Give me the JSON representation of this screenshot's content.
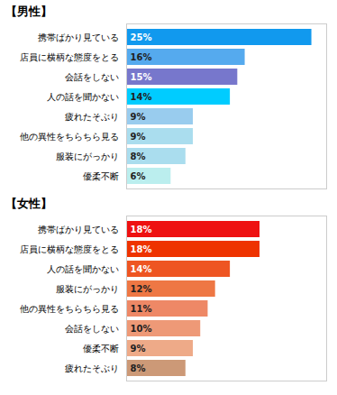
{
  "chart_data": [
    {
      "type": "bar",
      "orientation": "horizontal",
      "title": "【男性】",
      "categories": [
        "携帯ばかり見ている",
        "店員に横柄な態度をとる",
        "会話をしない",
        "人の話を聞かない",
        "疲れたそぶり",
        "他の異性をちらちら見る",
        "服装にがっかり",
        "優柔不断"
      ],
      "values": [
        25,
        16,
        15,
        14,
        9,
        9,
        8,
        6
      ],
      "value_labels": [
        "25%",
        "16%",
        "15%",
        "14%",
        "9%",
        "9%",
        "8%",
        "6%"
      ],
      "colors": [
        "#1199EE",
        "#55AAEE",
        "#7777CC",
        "#00CCFF",
        "#99CCEE",
        "#AADDEE",
        "#AADDEE",
        "#BBEEEE"
      ],
      "xlim": [
        0,
        27
      ],
      "data_labels": true,
      "tick_labels": "y",
      "grid": false
    },
    {
      "type": "bar",
      "orientation": "horizontal",
      "title": "【女性】",
      "categories": [
        "携帯ばかり見ている",
        "店員に横柄な態度をとる",
        "人の話を聞かない",
        "服装にがっかり",
        "他の異性をちらちら見る",
        "会話をしない",
        "優柔不断",
        "疲れたそぶり"
      ],
      "values": [
        18,
        18,
        14,
        12,
        11,
        10,
        9,
        8
      ],
      "value_labels": [
        "18%",
        "18%",
        "14%",
        "12%",
        "11%",
        "10%",
        "9%",
        "8%"
      ],
      "colors": [
        "#EE1111",
        "#EE3300",
        "#EE5522",
        "#EE7744",
        "#EE8866",
        "#EE9977",
        "#EEAA88",
        "#CC9977"
      ],
      "xlim": [
        0,
        27
      ],
      "data_labels": true,
      "tick_labels": "y",
      "grid": false
    }
  ]
}
